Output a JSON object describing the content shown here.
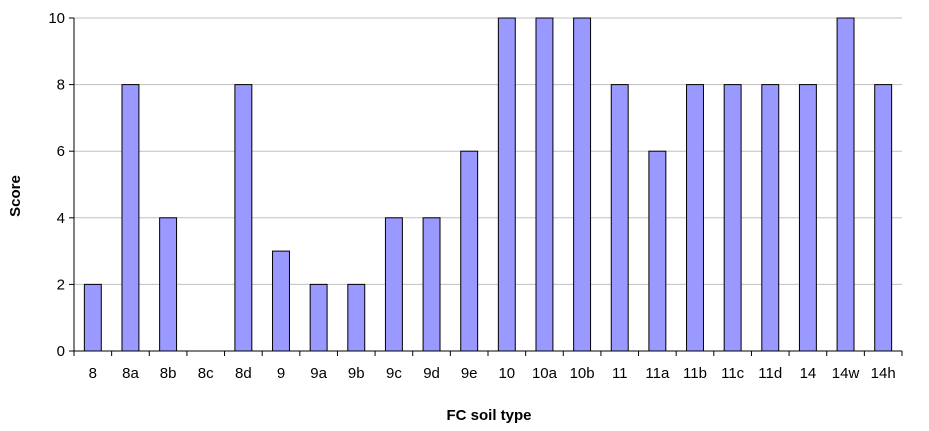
{
  "chart_data": {
    "type": "bar",
    "title": "",
    "xlabel": "FC soil type",
    "ylabel": "Score",
    "categories": [
      "8",
      "8a",
      "8b",
      "8c",
      "8d",
      "9",
      "9a",
      "9b",
      "9c",
      "9d",
      "9e",
      "10",
      "10a",
      "10b",
      "11",
      "11a",
      "11b",
      "11c",
      "11d",
      "14",
      "14w",
      "14h"
    ],
    "values": [
      2,
      8,
      4,
      0,
      8,
      3,
      2,
      2,
      4,
      4,
      6,
      10,
      10,
      10,
      8,
      6,
      8,
      8,
      8,
      8,
      10,
      8
    ],
    "ylim": [
      0,
      10
    ],
    "yticks": [
      "0",
      "2",
      "4",
      "6",
      "8",
      "10"
    ],
    "grid": true,
    "legend": "none",
    "colors": {
      "bar_fill": "#9999ff",
      "bar_stroke": "#000000",
      "grid": "#c0c0c0",
      "axis": "#000000"
    }
  }
}
